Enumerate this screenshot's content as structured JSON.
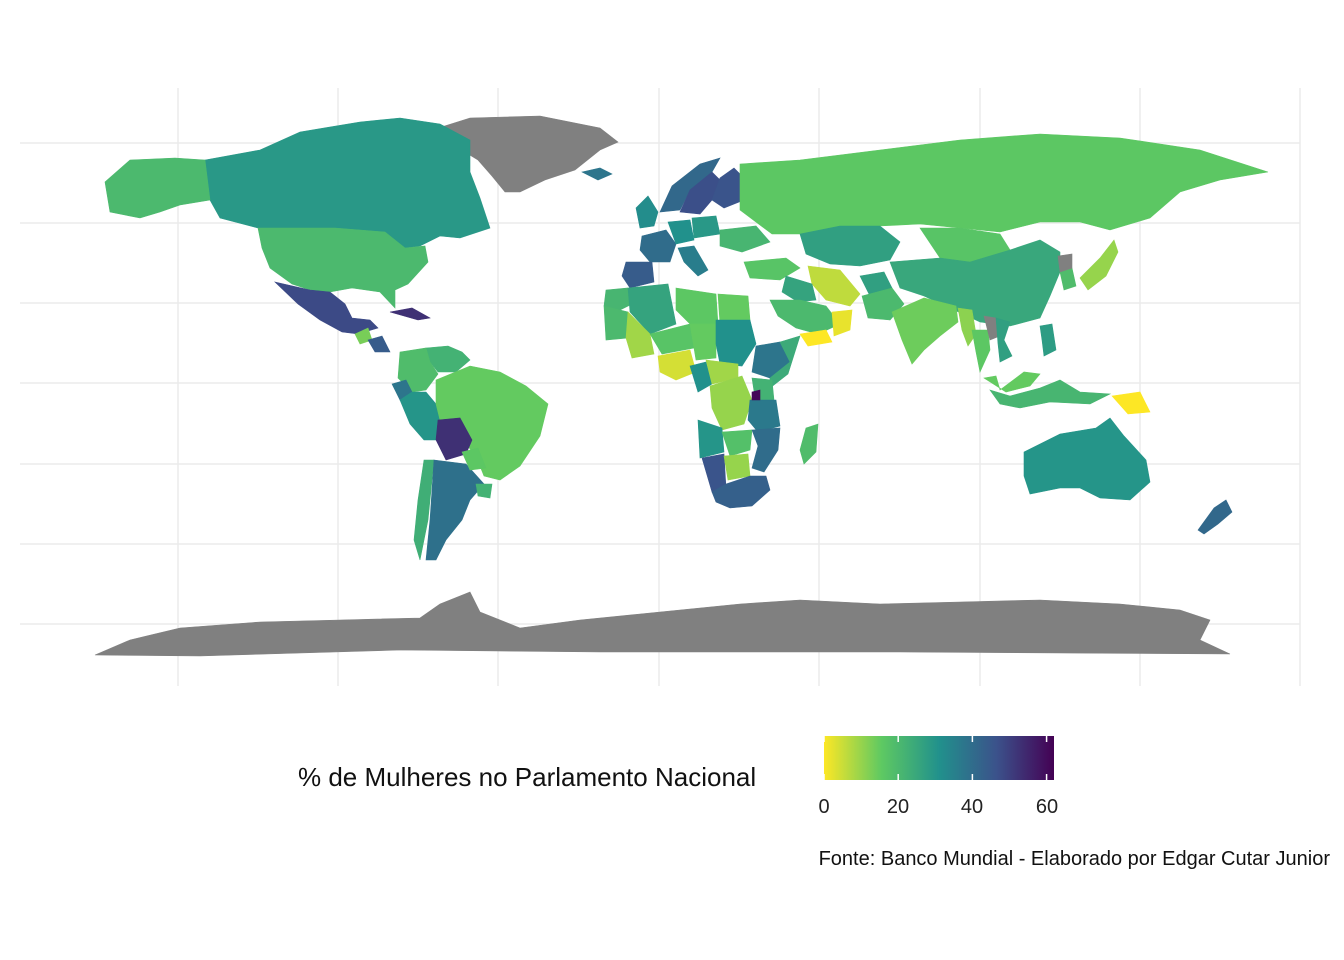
{
  "map": {
    "type": "choropleth",
    "variable": "% de Mulheres no Parlamento Nacional",
    "projection": "equirectangular",
    "missing_color": "#808080",
    "palette": "viridis (reversed)",
    "scale": {
      "min": 0,
      "max": 62
    },
    "color_stops": [
      "#fde725",
      "#5ec962",
      "#21918c",
      "#3b528b",
      "#440154"
    ],
    "grid": true,
    "regions": [
      {
        "name": "Greenland",
        "value": null
      },
      {
        "name": "Antarctica",
        "value": null
      },
      {
        "name": "Canada",
        "value": 29
      },
      {
        "name": "United States",
        "value": 20
      },
      {
        "name": "Alaska",
        "value": 20
      },
      {
        "name": "Mexico",
        "value": 48
      },
      {
        "name": "Cuba",
        "value": 53
      },
      {
        "name": "Guatemala",
        "value": 13
      },
      {
        "name": "Nicaragua",
        "value": 44
      },
      {
        "name": "Venezuela",
        "value": 22
      },
      {
        "name": "Colombia",
        "value": 19
      },
      {
        "name": "Ecuador",
        "value": 38
      },
      {
        "name": "Peru",
        "value": 30
      },
      {
        "name": "Brazil",
        "value": 15
      },
      {
        "name": "Bolivia",
        "value": 53
      },
      {
        "name": "Chile",
        "value": 23
      },
      {
        "name": "Argentina",
        "value": 39
      },
      {
        "name": "Paraguay",
        "value": 16
      },
      {
        "name": "Uruguay",
        "value": 22
      },
      {
        "name": "Iceland",
        "value": 38
      },
      {
        "name": "Norway",
        "value": 41
      },
      {
        "name": "Sweden",
        "value": 47
      },
      {
        "name": "Finland",
        "value": 46
      },
      {
        "name": "United Kingdom",
        "value": 32
      },
      {
        "name": "France",
        "value": 40
      },
      {
        "name": "Spain",
        "value": 44
      },
      {
        "name": "Germany",
        "value": 31
      },
      {
        "name": "Italy",
        "value": 36
      },
      {
        "name": "Poland",
        "value": 29
      },
      {
        "name": "Ukraine",
        "value": 21
      },
      {
        "name": "Russia",
        "value": 16
      },
      {
        "name": "Kazakhstan",
        "value": 27
      },
      {
        "name": "Mongolia",
        "value": 17
      },
      {
        "name": "China",
        "value": 25
      },
      {
        "name": "Japan",
        "value": 10
      },
      {
        "name": "Korea",
        "value": 19
      },
      {
        "name": "North Korea",
        "value": null
      },
      {
        "name": "Turkey",
        "value": 17
      },
      {
        "name": "Iran",
        "value": 6
      },
      {
        "name": "Iraq",
        "value": 26
      },
      {
        "name": "Saudi Arabia",
        "value": 20
      },
      {
        "name": "Yemen",
        "value": 0
      },
      {
        "name": "Oman",
        "value": 2
      },
      {
        "name": "Afghanistan",
        "value": 27
      },
      {
        "name": "Pakistan",
        "value": 20
      },
      {
        "name": "India",
        "value": 14
      },
      {
        "name": "Myanmar",
        "value": 11
      },
      {
        "name": "Thailand",
        "value": 16
      },
      {
        "name": "Laos",
        "value": null
      },
      {
        "name": "Vietnam",
        "value": 27
      },
      {
        "name": "Philippines",
        "value": 28
      },
      {
        "name": "Indonesia",
        "value": 21
      },
      {
        "name": "Malaysia",
        "value": 15
      },
      {
        "name": "Papua New Guinea",
        "value": 0
      },
      {
        "name": "Australia",
        "value": 30
      },
      {
        "name": "New Zealand",
        "value": 41
      },
      {
        "name": "Morocco",
        "value": 21
      },
      {
        "name": "Algeria",
        "value": 26
      },
      {
        "name": "Libya",
        "value": 16
      },
      {
        "name": "Egypt",
        "value": 15
      },
      {
        "name": "Mauritania",
        "value": 20
      },
      {
        "name": "Mali",
        "value": 9
      },
      {
        "name": "Niger",
        "value": 17
      },
      {
        "name": "Chad",
        "value": 15
      },
      {
        "name": "Sudan",
        "value": 31
      },
      {
        "name": "Ethiopia",
        "value": 38
      },
      {
        "name": "Somalia",
        "value": 24
      },
      {
        "name": "Nigeria",
        "value": 4
      },
      {
        "name": "Cameroon",
        "value": 31
      },
      {
        "name": "Central African Republic",
        "value": 9
      },
      {
        "name": "Congo (DRC)",
        "value": 10
      },
      {
        "name": "Kenya",
        "value": 22
      },
      {
        "name": "Tanzania",
        "value": 37
      },
      {
        "name": "Angola",
        "value": 30
      },
      {
        "name": "Zambia",
        "value": 18
      },
      {
        "name": "Namibia",
        "value": 46
      },
      {
        "name": "Botswana",
        "value": 10
      },
      {
        "name": "South Africa",
        "value": 43
      },
      {
        "name": "Mozambique",
        "value": 40
      },
      {
        "name": "Madagascar",
        "value": 19
      },
      {
        "name": "Rwanda",
        "value": 61
      }
    ]
  },
  "legend": {
    "title": "% de Mulheres no Parlamento Nacional",
    "ticks": [
      "0",
      "20",
      "40",
      "60"
    ],
    "tick_values": [
      0,
      20,
      40,
      60
    ]
  },
  "caption": "Fonte: Banco Mundial - Elaborado por Edgar Cutar Junior"
}
